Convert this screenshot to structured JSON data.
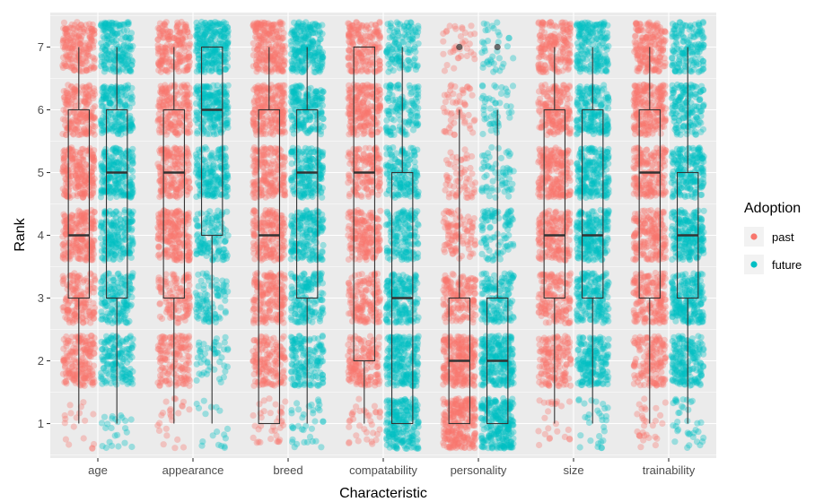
{
  "chart_data": {
    "type": "boxplot",
    "title": "",
    "xlabel": "Characteristic",
    "ylabel": "Rank",
    "ylim": [
      0.45,
      7.55
    ],
    "y_ticks": [
      1,
      2,
      3,
      4,
      5,
      6,
      7
    ],
    "categories": [
      "age",
      "appearance",
      "breed",
      "compatability",
      "personality",
      "size",
      "trainability"
    ],
    "legend": {
      "title": "Adoption",
      "position": "right",
      "entries": [
        {
          "name": "past",
          "color": "#F8766D"
        },
        {
          "name": "future",
          "color": "#00BFC4"
        }
      ]
    },
    "grid": true,
    "panel_background": "#EBEBEB",
    "point_alpha": 0.35,
    "series": [
      {
        "name": "past",
        "color": "#F8766D",
        "boxes": [
          {
            "category": "age",
            "lower_whisker": 1,
            "q1": 3,
            "median": 4,
            "q3": 6,
            "upper_whisker": 7,
            "outliers": []
          },
          {
            "category": "appearance",
            "lower_whisker": 1,
            "q1": 3,
            "median": 5,
            "q3": 6,
            "upper_whisker": 7,
            "outliers": []
          },
          {
            "category": "breed",
            "lower_whisker": 1,
            "q1": 1,
            "median": 4,
            "q3": 6,
            "upper_whisker": 7,
            "outliers": []
          },
          {
            "category": "compatability",
            "lower_whisker": 1,
            "q1": 2,
            "median": 5,
            "q3": 7,
            "upper_whisker": 7,
            "outliers": []
          },
          {
            "category": "personality",
            "lower_whisker": 1,
            "q1": 1,
            "median": 2,
            "q3": 3,
            "upper_whisker": 6,
            "outliers": [
              7
            ]
          },
          {
            "category": "size",
            "lower_whisker": 1,
            "q1": 3,
            "median": 4,
            "q3": 6,
            "upper_whisker": 7,
            "outliers": []
          },
          {
            "category": "trainability",
            "lower_whisker": 1,
            "q1": 3,
            "median": 5,
            "q3": 6,
            "upper_whisker": 7,
            "outliers": []
          }
        ],
        "point_density": [
          [
            0.3,
            3,
            2.5,
            3.5,
            3.5,
            3,
            3
          ],
          [
            0.4,
            2.5,
            2,
            3.5,
            3,
            3,
            3
          ],
          [
            0.6,
            2.5,
            3,
            3,
            3,
            3.5,
            3.5
          ],
          [
            0.6,
            2.5,
            2.5,
            3,
            2.5,
            3.5,
            3
          ],
          [
            4,
            4,
            2.5,
            1.6,
            1,
            0.9,
            0.6
          ],
          [
            0.4,
            2.5,
            2.5,
            3,
            3.5,
            3,
            3
          ],
          [
            0.5,
            2.5,
            3,
            3,
            3,
            3.5,
            3
          ]
        ]
      },
      {
        "name": "future",
        "color": "#00BFC4",
        "boxes": [
          {
            "category": "age",
            "lower_whisker": 1,
            "q1": 3,
            "median": 5,
            "q3": 6,
            "upper_whisker": 7,
            "outliers": []
          },
          {
            "category": "appearance",
            "lower_whisker": 1,
            "q1": 4,
            "median": 6,
            "q3": 7,
            "upper_whisker": 7,
            "outliers": []
          },
          {
            "category": "breed",
            "lower_whisker": 1,
            "q1": 3,
            "median": 5,
            "q3": 6,
            "upper_whisker": 7,
            "outliers": []
          },
          {
            "category": "compatability",
            "lower_whisker": 1,
            "q1": 1,
            "median": 3,
            "q3": 5,
            "upper_whisker": 7,
            "outliers": []
          },
          {
            "category": "personality",
            "lower_whisker": 1,
            "q1": 1,
            "median": 2,
            "q3": 3,
            "upper_whisker": 6,
            "outliers": [
              7
            ]
          },
          {
            "category": "size",
            "lower_whisker": 1,
            "q1": 3,
            "median": 4,
            "q3": 6,
            "upper_whisker": 7,
            "outliers": []
          },
          {
            "category": "trainability",
            "lower_whisker": 1,
            "q1": 3,
            "median": 4,
            "q3": 5,
            "upper_whisker": 7,
            "outliers": []
          }
        ],
        "point_density": [
          [
            0.4,
            2.5,
            2.5,
            3,
            3.5,
            3,
            3
          ],
          [
            0.3,
            0.8,
            1.5,
            2,
            3,
            3.5,
            4
          ],
          [
            0.6,
            2.5,
            2.5,
            3,
            3,
            3,
            3.5
          ],
          [
            3.5,
            3.5,
            3,
            2.5,
            2.5,
            2,
            2
          ],
          [
            4,
            4,
            2.5,
            1.5,
            1,
            0.8,
            0.6
          ],
          [
            0.5,
            3,
            3,
            3.5,
            3.5,
            3,
            3
          ],
          [
            0.6,
            3,
            3.5,
            3.5,
            3,
            2.5,
            2.5
          ]
        ]
      }
    ]
  }
}
